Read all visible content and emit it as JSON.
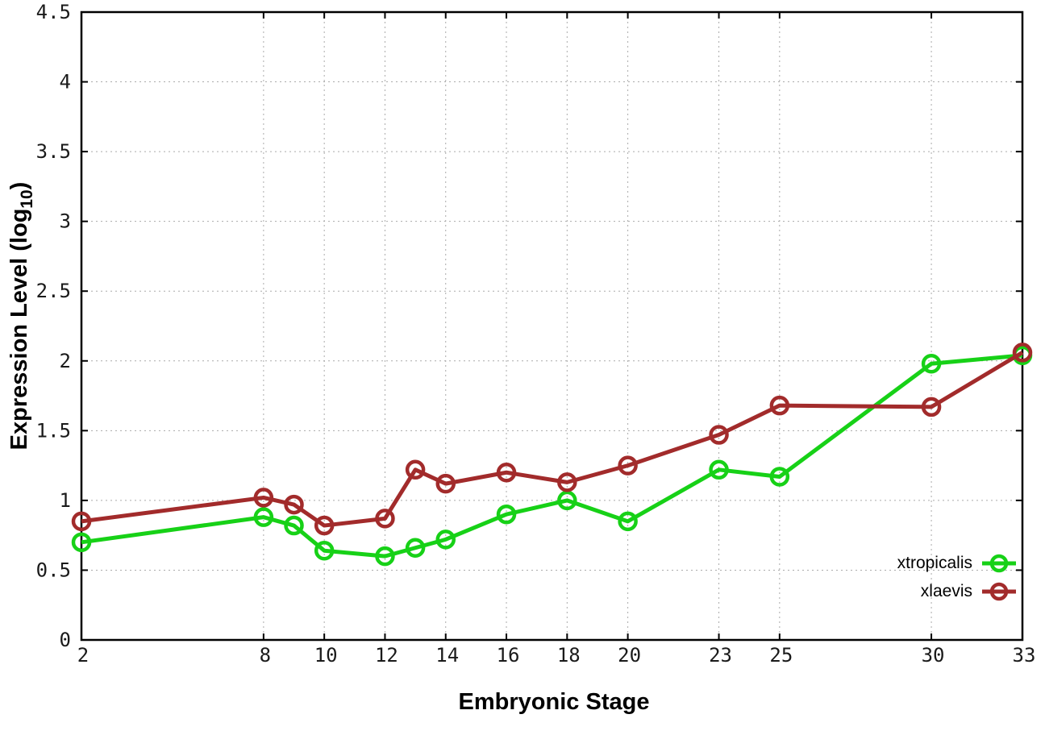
{
  "chart_data": {
    "type": "line",
    "title": "",
    "xlabel": "Embryonic Stage",
    "ylabel": {
      "prefix": "Expression Level (log",
      "sub": "10",
      "suffix": ")"
    },
    "x": [
      2,
      8,
      9,
      10,
      12,
      13,
      14,
      16,
      18,
      20,
      23,
      25,
      30,
      33
    ],
    "series": [
      {
        "name": "xtropicalis",
        "color": "#17d117",
        "values": [
          0.7,
          0.88,
          0.82,
          0.64,
          0.6,
          0.66,
          0.72,
          0.9,
          1.0,
          0.85,
          1.22,
          1.17,
          1.98,
          2.04
        ]
      },
      {
        "name": "xlaevis",
        "color": "#a22b2b",
        "values": [
          0.85,
          1.02,
          0.97,
          0.82,
          0.87,
          1.22,
          1.12,
          1.2,
          1.13,
          1.25,
          1.47,
          1.68,
          1.67,
          2.06
        ]
      }
    ],
    "xlim": [
      2,
      33
    ],
    "ylim": [
      0,
      4.5
    ],
    "x_ticks": [
      2,
      8,
      10,
      12,
      14,
      16,
      18,
      20,
      23,
      25,
      30,
      33
    ],
    "x_tick_labels": [
      "2",
      "8",
      "10",
      "12",
      "14",
      "16",
      "18",
      "20",
      "23",
      "25",
      "30",
      "33"
    ],
    "y_ticks": [
      0,
      0.5,
      1,
      1.5,
      2,
      2.5,
      3,
      3.5,
      4,
      4.5
    ],
    "y_tick_labels": [
      "0",
      "0.5",
      "1",
      "1.5",
      "2",
      "2.5",
      "3",
      "3.5",
      "4",
      "4.5"
    ],
    "grid": true,
    "legend_position": "bottom-right",
    "marker": "open-circle"
  },
  "colors": {
    "background": "#ffffff",
    "axis": "#000000",
    "grid": "#aaaaaa",
    "tick_text": "#1a1a1a",
    "series_green": "#17d117",
    "series_brown": "#a22b2b"
  }
}
